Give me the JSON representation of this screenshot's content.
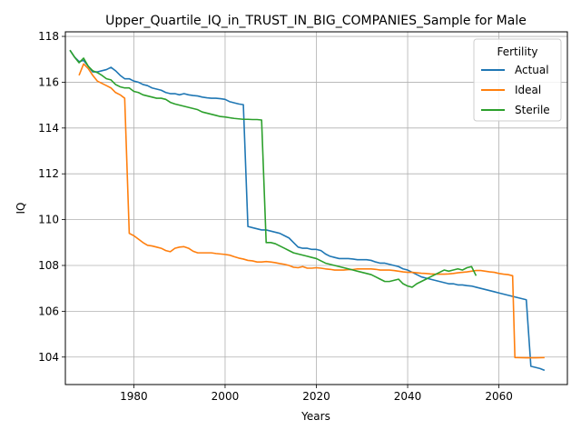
{
  "chart_data": {
    "type": "line",
    "title": "Upper_Quartile_IQ_in_TRUST_IN_BIG_COMPANIES_Sample for Male",
    "xlabel": "Years",
    "ylabel": "IQ",
    "xlim": [
      1965,
      2075
    ],
    "ylim": [
      102.8,
      118.2
    ],
    "xticks": [
      1980,
      2000,
      2020,
      2040,
      2060
    ],
    "yticks": [
      104,
      106,
      108,
      110,
      112,
      114,
      116,
      118
    ],
    "grid": true,
    "legend": {
      "title": "Fertility",
      "position": "top-right"
    },
    "series": [
      {
        "name": "Actual",
        "color": "#1f77b4",
        "points": [
          [
            1966,
            117.4
          ],
          [
            1967,
            117.1
          ],
          [
            1968,
            116.9
          ],
          [
            1969,
            116.95
          ],
          [
            1970,
            116.7
          ],
          [
            1971,
            116.45
          ],
          [
            1972,
            116.45
          ],
          [
            1973,
            116.5
          ],
          [
            1974,
            116.55
          ],
          [
            1975,
            116.65
          ],
          [
            1976,
            116.5
          ],
          [
            1977,
            116.3
          ],
          [
            1978,
            116.15
          ],
          [
            1979,
            116.15
          ],
          [
            1980,
            116.05
          ],
          [
            1981,
            116.0
          ],
          [
            1982,
            115.9
          ],
          [
            1983,
            115.85
          ],
          [
            1984,
            115.75
          ],
          [
            1985,
            115.7
          ],
          [
            1986,
            115.65
          ],
          [
            1987,
            115.55
          ],
          [
            1988,
            115.5
          ],
          [
            1989,
            115.5
          ],
          [
            1990,
            115.45
          ],
          [
            1991,
            115.5
          ],
          [
            1992,
            115.45
          ],
          [
            1993,
            115.42
          ],
          [
            1994,
            115.4
          ],
          [
            1995,
            115.35
          ],
          [
            1996,
            115.32
          ],
          [
            1997,
            115.3
          ],
          [
            1998,
            115.3
          ],
          [
            1999,
            115.28
          ],
          [
            2000,
            115.25
          ],
          [
            2001,
            115.15
          ],
          [
            2002,
            115.1
          ],
          [
            2003,
            115.05
          ],
          [
            2004,
            115.02
          ],
          [
            2005,
            109.7
          ],
          [
            2006,
            109.65
          ],
          [
            2007,
            109.6
          ],
          [
            2008,
            109.55
          ],
          [
            2009,
            109.55
          ],
          [
            2010,
            109.5
          ],
          [
            2011,
            109.45
          ],
          [
            2012,
            109.4
          ],
          [
            2013,
            109.3
          ],
          [
            2014,
            109.2
          ],
          [
            2015,
            109.0
          ],
          [
            2016,
            108.8
          ],
          [
            2017,
            108.75
          ],
          [
            2018,
            108.75
          ],
          [
            2019,
            108.7
          ],
          [
            2020,
            108.7
          ],
          [
            2021,
            108.65
          ],
          [
            2022,
            108.5
          ],
          [
            2023,
            108.4
          ],
          [
            2024,
            108.35
          ],
          [
            2025,
            108.3
          ],
          [
            2026,
            108.3
          ],
          [
            2027,
            108.3
          ],
          [
            2028,
            108.28
          ],
          [
            2029,
            108.25
          ],
          [
            2030,
            108.25
          ],
          [
            2031,
            108.25
          ],
          [
            2032,
            108.22
          ],
          [
            2033,
            108.15
          ],
          [
            2034,
            108.1
          ],
          [
            2035,
            108.1
          ],
          [
            2036,
            108.05
          ],
          [
            2037,
            108.0
          ],
          [
            2038,
            107.95
          ],
          [
            2039,
            107.85
          ],
          [
            2040,
            107.8
          ],
          [
            2041,
            107.7
          ],
          [
            2042,
            107.6
          ],
          [
            2043,
            107.5
          ],
          [
            2044,
            107.45
          ],
          [
            2045,
            107.4
          ],
          [
            2046,
            107.35
          ],
          [
            2047,
            107.3
          ],
          [
            2048,
            107.25
          ],
          [
            2049,
            107.2
          ],
          [
            2050,
            107.2
          ],
          [
            2051,
            107.15
          ],
          [
            2052,
            107.15
          ],
          [
            2053,
            107.12
          ],
          [
            2054,
            107.1
          ],
          [
            2055,
            107.05
          ],
          [
            2056,
            107.0
          ],
          [
            2057,
            106.95
          ],
          [
            2058,
            106.9
          ],
          [
            2059,
            106.85
          ],
          [
            2060,
            106.8
          ],
          [
            2061,
            106.75
          ],
          [
            2062,
            106.7
          ],
          [
            2063,
            106.65
          ],
          [
            2064,
            106.6
          ],
          [
            2065,
            106.55
          ],
          [
            2066,
            106.5
          ],
          [
            2067,
            103.6
          ],
          [
            2068,
            103.55
          ],
          [
            2069,
            103.5
          ],
          [
            2070,
            103.42
          ]
        ]
      },
      {
        "name": "Ideal",
        "color": "#ff7f0e",
        "points": [
          [
            1968,
            116.3
          ],
          [
            1969,
            116.8
          ],
          [
            1970,
            116.6
          ],
          [
            1971,
            116.3
          ],
          [
            1972,
            116.05
          ],
          [
            1973,
            115.95
          ],
          [
            1974,
            115.85
          ],
          [
            1975,
            115.75
          ],
          [
            1976,
            115.55
          ],
          [
            1977,
            115.45
          ],
          [
            1978,
            115.3
          ],
          [
            1979,
            109.4
          ],
          [
            1980,
            109.3
          ],
          [
            1981,
            109.15
          ],
          [
            1982,
            109.0
          ],
          [
            1983,
            108.88
          ],
          [
            1984,
            108.85
          ],
          [
            1985,
            108.8
          ],
          [
            1986,
            108.75
          ],
          [
            1987,
            108.65
          ],
          [
            1988,
            108.6
          ],
          [
            1989,
            108.75
          ],
          [
            1990,
            108.8
          ],
          [
            1991,
            108.82
          ],
          [
            1992,
            108.75
          ],
          [
            1993,
            108.62
          ],
          [
            1994,
            108.55
          ],
          [
            1995,
            108.55
          ],
          [
            1996,
            108.55
          ],
          [
            1997,
            108.55
          ],
          [
            1998,
            108.52
          ],
          [
            1999,
            108.5
          ],
          [
            2000,
            108.48
          ],
          [
            2001,
            108.45
          ],
          [
            2002,
            108.38
          ],
          [
            2003,
            108.32
          ],
          [
            2004,
            108.28
          ],
          [
            2005,
            108.22
          ],
          [
            2006,
            108.2
          ],
          [
            2007,
            108.15
          ],
          [
            2008,
            108.15
          ],
          [
            2009,
            108.17
          ],
          [
            2010,
            108.15
          ],
          [
            2011,
            108.12
          ],
          [
            2012,
            108.08
          ],
          [
            2013,
            108.05
          ],
          [
            2014,
            108.0
          ],
          [
            2015,
            107.92
          ],
          [
            2016,
            107.9
          ],
          [
            2017,
            107.95
          ],
          [
            2018,
            107.88
          ],
          [
            2019,
            107.88
          ],
          [
            2020,
            107.9
          ],
          [
            2021,
            107.88
          ],
          [
            2022,
            107.85
          ],
          [
            2023,
            107.83
          ],
          [
            2024,
            107.8
          ],
          [
            2025,
            107.8
          ],
          [
            2026,
            107.8
          ],
          [
            2027,
            107.82
          ],
          [
            2028,
            107.82
          ],
          [
            2029,
            107.85
          ],
          [
            2030,
            107.85
          ],
          [
            2031,
            107.85
          ],
          [
            2032,
            107.85
          ],
          [
            2033,
            107.83
          ],
          [
            2034,
            107.8
          ],
          [
            2035,
            107.8
          ],
          [
            2036,
            107.8
          ],
          [
            2037,
            107.78
          ],
          [
            2038,
            107.75
          ],
          [
            2039,
            107.72
          ],
          [
            2040,
            107.7
          ],
          [
            2041,
            107.7
          ],
          [
            2042,
            107.68
          ],
          [
            2043,
            107.66
          ],
          [
            2044,
            107.65
          ],
          [
            2045,
            107.63
          ],
          [
            2046,
            107.62
          ],
          [
            2047,
            107.62
          ],
          [
            2048,
            107.62
          ],
          [
            2049,
            107.63
          ],
          [
            2050,
            107.65
          ],
          [
            2051,
            107.68
          ],
          [
            2052,
            107.7
          ],
          [
            2053,
            107.72
          ],
          [
            2054,
            107.75
          ],
          [
            2055,
            107.78
          ],
          [
            2056,
            107.78
          ],
          [
            2057,
            107.75
          ],
          [
            2058,
            107.72
          ],
          [
            2059,
            107.7
          ],
          [
            2060,
            107.65
          ],
          [
            2061,
            107.62
          ],
          [
            2062,
            107.6
          ],
          [
            2063,
            107.55
          ],
          [
            2063.5,
            103.98
          ],
          [
            2064,
            103.98
          ],
          [
            2066,
            103.97
          ],
          [
            2068,
            103.97
          ],
          [
            2070,
            103.98
          ]
        ]
      },
      {
        "name": "Sterile",
        "color": "#2ca02c",
        "points": [
          [
            1966,
            117.4
          ],
          [
            1967,
            117.1
          ],
          [
            1968,
            116.85
          ],
          [
            1969,
            117.05
          ],
          [
            1970,
            116.7
          ],
          [
            1971,
            116.5
          ],
          [
            1972,
            116.42
          ],
          [
            1973,
            116.3
          ],
          [
            1974,
            116.15
          ],
          [
            1975,
            116.1
          ],
          [
            1976,
            115.9
          ],
          [
            1977,
            115.8
          ],
          [
            1978,
            115.75
          ],
          [
            1979,
            115.75
          ],
          [
            1980,
            115.6
          ],
          [
            1981,
            115.55
          ],
          [
            1982,
            115.45
          ],
          [
            1983,
            115.4
          ],
          [
            1984,
            115.35
          ],
          [
            1985,
            115.3
          ],
          [
            1986,
            115.3
          ],
          [
            1987,
            115.25
          ],
          [
            1988,
            115.12
          ],
          [
            1989,
            115.05
          ],
          [
            1990,
            115.0
          ],
          [
            1991,
            114.95
          ],
          [
            1992,
            114.9
          ],
          [
            1993,
            114.85
          ],
          [
            1994,
            114.8
          ],
          [
            1995,
            114.7
          ],
          [
            1996,
            114.65
          ],
          [
            1997,
            114.6
          ],
          [
            1998,
            114.55
          ],
          [
            1999,
            114.5
          ],
          [
            2000,
            114.48
          ],
          [
            2001,
            114.45
          ],
          [
            2002,
            114.42
          ],
          [
            2003,
            114.4
          ],
          [
            2004,
            114.38
          ],
          [
            2005,
            114.38
          ],
          [
            2006,
            114.37
          ],
          [
            2007,
            114.37
          ],
          [
            2008,
            114.35
          ],
          [
            2009,
            109.0
          ],
          [
            2010,
            109.0
          ],
          [
            2011,
            108.95
          ],
          [
            2012,
            108.85
          ],
          [
            2013,
            108.75
          ],
          [
            2014,
            108.65
          ],
          [
            2015,
            108.55
          ],
          [
            2016,
            108.5
          ],
          [
            2017,
            108.45
          ],
          [
            2018,
            108.4
          ],
          [
            2019,
            108.35
          ],
          [
            2020,
            108.3
          ],
          [
            2021,
            108.2
          ],
          [
            2022,
            108.1
          ],
          [
            2023,
            108.05
          ],
          [
            2024,
            108.0
          ],
          [
            2025,
            107.95
          ],
          [
            2026,
            107.9
          ],
          [
            2027,
            107.85
          ],
          [
            2028,
            107.8
          ],
          [
            2029,
            107.75
          ],
          [
            2030,
            107.7
          ],
          [
            2031,
            107.65
          ],
          [
            2032,
            107.6
          ],
          [
            2033,
            107.5
          ],
          [
            2034,
            107.4
          ],
          [
            2035,
            107.3
          ],
          [
            2036,
            107.3
          ],
          [
            2037,
            107.35
          ],
          [
            2038,
            107.4
          ],
          [
            2039,
            107.2
          ],
          [
            2040,
            107.1
          ],
          [
            2041,
            107.05
          ],
          [
            2042,
            107.2
          ],
          [
            2043,
            107.3
          ],
          [
            2044,
            107.4
          ],
          [
            2045,
            107.5
          ],
          [
            2046,
            107.6
          ],
          [
            2047,
            107.7
          ],
          [
            2048,
            107.8
          ],
          [
            2049,
            107.75
          ],
          [
            2050,
            107.8
          ],
          [
            2051,
            107.85
          ],
          [
            2052,
            107.8
          ],
          [
            2053,
            107.9
          ],
          [
            2054,
            107.95
          ],
          [
            2055,
            107.55
          ]
        ]
      }
    ]
  }
}
